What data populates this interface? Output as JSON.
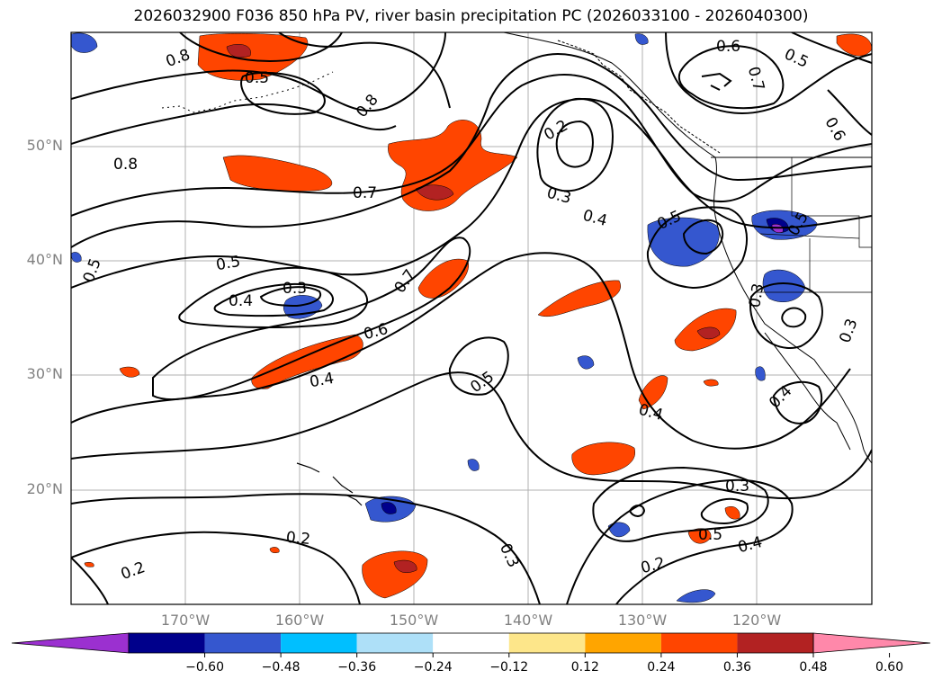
{
  "title": "2026032900 F036 850 hPa PV, river basin precipitation PC (2026033100 - 2026040300)",
  "lat_labels": [
    "50°N",
    "40°N",
    "30°N",
    "20°N"
  ],
  "lon_labels": [
    "170°W",
    "160°W",
    "150°W",
    "140°W",
    "130°W",
    "120°W"
  ],
  "contour_labels": [
    "0.8",
    "0.5",
    "0.6",
    "0.5",
    "0.7",
    "0.6",
    "0.8",
    "0.2",
    "0.3",
    "0.4",
    "0.5",
    "0.8",
    "0.7",
    "0.5",
    "0.5",
    "0.3",
    "0.4",
    "0.7",
    "0.5",
    "0.6",
    "0.4",
    "0.3",
    "0.4",
    "0.3",
    "0.5",
    "0.4",
    "0.3",
    "0.5",
    "0.4",
    "0.2",
    "0.3",
    "0.2",
    "0.2",
    "0.2",
    "0.3"
  ],
  "colorbar": {
    "colors": [
      "#9b30d0",
      "#00008b",
      "#3557cf",
      "#00bfff",
      "#aee0f8",
      "#ffffff",
      "#fde68a",
      "#ffa500",
      "#ff4500",
      "#b22222",
      "#ff88aa"
    ],
    "tick_labels": [
      "−0.60",
      "−0.48",
      "−0.36",
      "−0.24",
      "−0.12",
      "0.12",
      "0.24",
      "0.36",
      "0.48",
      "0.60"
    ]
  },
  "map": {
    "lon_range": [
      "180°W",
      "110°W"
    ],
    "lat_range": [
      "10°N",
      "60°N"
    ],
    "grid": true,
    "contour_color": "#000000"
  }
}
